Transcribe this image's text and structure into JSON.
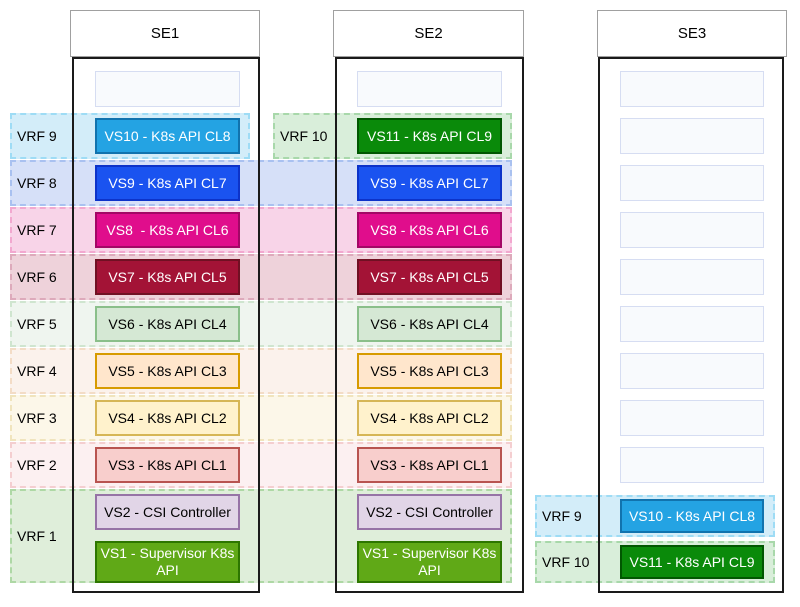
{
  "columns": [
    {
      "title": "SE1",
      "slots": [
        {
          "type": "empty",
          "label": ""
        },
        {
          "label": "VS10 - K8s API CL8",
          "fill": "#24a3e3",
          "border": "#1173ae",
          "text_color": "#ffffff"
        },
        {
          "label": "VS9 - K8s API CL7",
          "fill": "#1a53f0",
          "border": "#0d33c9",
          "text_color": "#ffffff"
        },
        {
          "label": "VS8  - K8s API CL6",
          "fill": "#e00d8c",
          "border": "#a30766",
          "text_color": "#ffffff"
        },
        {
          "label": "VS7 - K8s API CL5",
          "fill": "#a31336",
          "border": "#701023",
          "text_color": "#ffffff"
        },
        {
          "label": "VS6 - K8s API CL4",
          "fill": "#d5e8d4",
          "border": "#8abf8a",
          "text_color": "#000000"
        },
        {
          "label": "VS5 - K8s API CL3",
          "fill": "#ffe6cc",
          "border": "#d79b00",
          "text_color": "#000000"
        },
        {
          "label": "VS4 - K8s API CL2",
          "fill": "#fff2cc",
          "border": "#d6b656",
          "text_color": "#000000"
        },
        {
          "label": "VS3 - K8s API CL1",
          "fill": "#f8cecc",
          "border": "#b85450",
          "text_color": "#000000"
        },
        {
          "label": "VS2 - CSI Controller",
          "fill": "#e1d5e7",
          "border": "#9673a6",
          "text_color": "#000000"
        },
        {
          "label": "VS1 - Supervisor K8s API",
          "fill": "#60a917",
          "border": "#2d7600",
          "text_color": "#ffffff"
        }
      ]
    },
    {
      "title": "SE2",
      "slots": [
        {
          "type": "empty",
          "label": ""
        },
        {
          "label": "VS11 - K8s API CL9",
          "fill": "#0a8a0a",
          "border": "#015701",
          "text_color": "#ffffff"
        },
        {
          "label": "VS9 - K8s API CL7",
          "fill": "#1a53f0",
          "border": "#0d33c9",
          "text_color": "#ffffff"
        },
        {
          "label": "VS8 - K8s API CL6",
          "fill": "#e00d8c",
          "border": "#a30766",
          "text_color": "#ffffff"
        },
        {
          "label": "VS7 - K8s API CL5",
          "fill": "#a31336",
          "border": "#701023",
          "text_color": "#ffffff"
        },
        {
          "label": "VS6 - K8s API CL4",
          "fill": "#d5e8d4",
          "border": "#8abf8a",
          "text_color": "#000000"
        },
        {
          "label": "VS5 - K8s API CL3",
          "fill": "#ffe6cc",
          "border": "#d79b00",
          "text_color": "#000000"
        },
        {
          "label": "VS4 - K8s API CL2",
          "fill": "#fff2cc",
          "border": "#d6b656",
          "text_color": "#000000"
        },
        {
          "label": "VS3 - K8s API CL1",
          "fill": "#f8cecc",
          "border": "#b85450",
          "text_color": "#000000"
        },
        {
          "label": "VS2 - CSI Controller",
          "fill": "#e1d5e7",
          "border": "#9673a6",
          "text_color": "#000000"
        },
        {
          "label": "VS1 - Supervisor K8s API",
          "fill": "#60a917",
          "border": "#2d7600",
          "text_color": "#ffffff"
        }
      ]
    },
    {
      "title": "SE3",
      "slots": [
        {
          "type": "empty",
          "label": ""
        },
        {
          "type": "empty",
          "label": ""
        },
        {
          "type": "empty",
          "label": ""
        },
        {
          "type": "empty",
          "label": ""
        },
        {
          "type": "empty",
          "label": ""
        },
        {
          "type": "empty",
          "label": ""
        },
        {
          "type": "empty",
          "label": ""
        },
        {
          "type": "empty",
          "label": ""
        },
        {
          "type": "empty",
          "label": ""
        },
        {
          "label": "VS10 - K8s API CL8",
          "fill": "#24a3e3",
          "border": "#1173ae",
          "text_color": "#ffffff"
        },
        {
          "label": "VS11 - K8s API CL9",
          "fill": "#0a8a0a",
          "border": "#015701",
          "text_color": "#ffffff"
        }
      ]
    }
  ],
  "bands": [
    {
      "label": "VRF 9",
      "fill": "#d3edf9",
      "border": "#9edcf5"
    },
    {
      "label": "VRF 10",
      "fill": "#d9eeda",
      "border": "#a8d8aa"
    },
    {
      "label": "VRF 8",
      "fill": "#d6e0f8",
      "border": "#a9c1f0"
    },
    {
      "label": "VRF 7",
      "fill": "#f8d4e8",
      "border": "#f2a8cf"
    },
    {
      "label": "VRF 6",
      "fill": "#eed2da",
      "border": "#ddaabb"
    },
    {
      "label": "VRF 5",
      "fill": "#eff5ef",
      "border": "#cfe5cf"
    },
    {
      "label": "VRF 4",
      "fill": "#fbf2ec",
      "border": "#f3dcc6"
    },
    {
      "label": "VRF 3",
      "fill": "#fcf7e9",
      "border": "#f0e4bd"
    },
    {
      "label": "VRF 2",
      "fill": "#fcf0f1",
      "border": "#f4ced0"
    },
    {
      "label": "VRF 1",
      "fill": "#dfeeda",
      "border": "#aed8a5"
    },
    {
      "label": "VRF 9",
      "fill": "#d3edf9",
      "border": "#9edcf5"
    },
    {
      "label": "VRF 10",
      "fill": "#d9eeda",
      "border": "#a8d8aa"
    }
  ]
}
